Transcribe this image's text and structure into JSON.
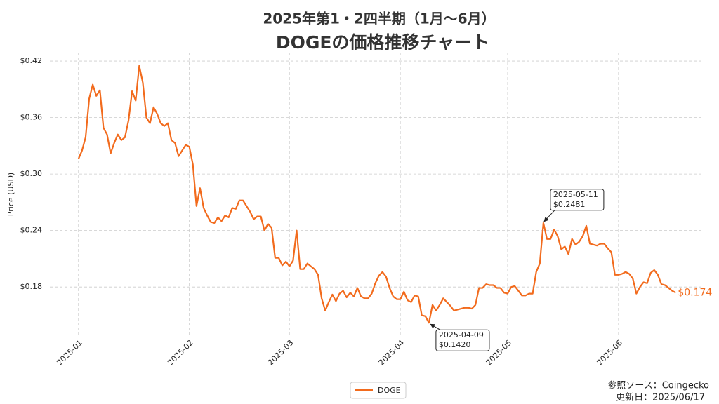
{
  "chart_data": {
    "type": "line",
    "title": "2025年第1・2四半期（1月〜6月）",
    "subtitle": "DOGEの価格推移チャート",
    "y_label": "Price (USD)",
    "source": "参照ソース：Coingecko",
    "updated": "更新日：2025/06/17",
    "grid": true,
    "legend_position": "bottom",
    "x": [
      "2025-01-01",
      "2025-01-02",
      "2025-01-03",
      "2025-01-04",
      "2025-01-05",
      "2025-01-06",
      "2025-01-07",
      "2025-01-08",
      "2025-01-09",
      "2025-01-10",
      "2025-01-11",
      "2025-01-12",
      "2025-01-13",
      "2025-01-14",
      "2025-01-15",
      "2025-01-16",
      "2025-01-17",
      "2025-01-18",
      "2025-01-19",
      "2025-01-20",
      "2025-01-21",
      "2025-01-22",
      "2025-01-23",
      "2025-01-24",
      "2025-01-25",
      "2025-01-26",
      "2025-01-27",
      "2025-01-28",
      "2025-01-29",
      "2025-01-30",
      "2025-01-31",
      "2025-02-01",
      "2025-02-02",
      "2025-02-03",
      "2025-02-04",
      "2025-02-05",
      "2025-02-06",
      "2025-02-07",
      "2025-02-08",
      "2025-02-09",
      "2025-02-10",
      "2025-02-11",
      "2025-02-12",
      "2025-02-13",
      "2025-02-14",
      "2025-02-15",
      "2025-02-16",
      "2025-02-17",
      "2025-02-18",
      "2025-02-19",
      "2025-02-20",
      "2025-02-21",
      "2025-02-22",
      "2025-02-23",
      "2025-02-24",
      "2025-02-25",
      "2025-02-26",
      "2025-02-27",
      "2025-02-28",
      "2025-03-01",
      "2025-03-02",
      "2025-03-03",
      "2025-03-04",
      "2025-03-05",
      "2025-03-06",
      "2025-03-07",
      "2025-03-08",
      "2025-03-09",
      "2025-03-10",
      "2025-03-11",
      "2025-03-12",
      "2025-03-13",
      "2025-03-14",
      "2025-03-15",
      "2025-03-16",
      "2025-03-17",
      "2025-03-18",
      "2025-03-19",
      "2025-03-20",
      "2025-03-21",
      "2025-03-22",
      "2025-03-23",
      "2025-03-24",
      "2025-03-25",
      "2025-03-26",
      "2025-03-27",
      "2025-03-28",
      "2025-03-29",
      "2025-03-30",
      "2025-03-31",
      "2025-04-01",
      "2025-04-02",
      "2025-04-03",
      "2025-04-04",
      "2025-04-05",
      "2025-04-06",
      "2025-04-07",
      "2025-04-08",
      "2025-04-09",
      "2025-04-10",
      "2025-04-11",
      "2025-04-12",
      "2025-04-13",
      "2025-04-14",
      "2025-04-15",
      "2025-04-16",
      "2025-04-17",
      "2025-04-18",
      "2025-04-19",
      "2025-04-20",
      "2025-04-21",
      "2025-04-22",
      "2025-04-23",
      "2025-04-24",
      "2025-04-25",
      "2025-04-26",
      "2025-04-27",
      "2025-04-28",
      "2025-04-29",
      "2025-04-30",
      "2025-05-01",
      "2025-05-02",
      "2025-05-03",
      "2025-05-04",
      "2025-05-05",
      "2025-05-06",
      "2025-05-07",
      "2025-05-08",
      "2025-05-09",
      "2025-05-10",
      "2025-05-11",
      "2025-05-12",
      "2025-05-13",
      "2025-05-14",
      "2025-05-15",
      "2025-05-16",
      "2025-05-17",
      "2025-05-18",
      "2025-05-19",
      "2025-05-20",
      "2025-05-21",
      "2025-05-22",
      "2025-05-23",
      "2025-05-24",
      "2025-05-25",
      "2025-05-26",
      "2025-05-27",
      "2025-05-28",
      "2025-05-29",
      "2025-05-30",
      "2025-05-31",
      "2025-06-01",
      "2025-06-02",
      "2025-06-03",
      "2025-06-04",
      "2025-06-05",
      "2025-06-06",
      "2025-06-07",
      "2025-06-08",
      "2025-06-09",
      "2025-06-10",
      "2025-06-11",
      "2025-06-12",
      "2025-06-13",
      "2025-06-14",
      "2025-06-15",
      "2025-06-16",
      "2025-06-17"
    ],
    "series": [
      {
        "name": "DOGE",
        "color": "#f26b1d",
        "values": [
          0.316,
          0.325,
          0.339,
          0.38,
          0.395,
          0.383,
          0.389,
          0.349,
          0.342,
          0.322,
          0.333,
          0.342,
          0.336,
          0.339,
          0.357,
          0.388,
          0.378,
          0.415,
          0.397,
          0.36,
          0.354,
          0.371,
          0.364,
          0.354,
          0.351,
          0.354,
          0.336,
          0.333,
          0.319,
          0.325,
          0.331,
          0.329,
          0.31,
          0.266,
          0.285,
          0.264,
          0.256,
          0.249,
          0.248,
          0.254,
          0.25,
          0.256,
          0.254,
          0.264,
          0.263,
          0.272,
          0.272,
          0.266,
          0.26,
          0.252,
          0.255,
          0.255,
          0.24,
          0.247,
          0.243,
          0.211,
          0.211,
          0.203,
          0.207,
          0.202,
          0.208,
          0.24,
          0.199,
          0.199,
          0.205,
          0.202,
          0.199,
          0.193,
          0.168,
          0.155,
          0.164,
          0.172,
          0.165,
          0.173,
          0.176,
          0.169,
          0.174,
          0.17,
          0.179,
          0.17,
          0.168,
          0.168,
          0.173,
          0.184,
          0.192,
          0.196,
          0.191,
          0.179,
          0.17,
          0.167,
          0.167,
          0.175,
          0.166,
          0.164,
          0.171,
          0.17,
          0.15,
          0.149,
          0.142,
          0.161,
          0.155,
          0.161,
          0.168,
          0.164,
          0.16,
          0.155,
          0.156,
          0.157,
          0.158,
          0.158,
          0.157,
          0.161,
          0.179,
          0.179,
          0.183,
          0.182,
          0.182,
          0.179,
          0.179,
          0.174,
          0.173,
          0.18,
          0.181,
          0.176,
          0.171,
          0.171,
          0.173,
          0.173,
          0.196,
          0.205,
          0.2481,
          0.231,
          0.231,
          0.241,
          0.234,
          0.22,
          0.223,
          0.215,
          0.231,
          0.225,
          0.228,
          0.234,
          0.245,
          0.226,
          0.225,
          0.224,
          0.226,
          0.226,
          0.221,
          0.217,
          0.193,
          0.193,
          0.194,
          0.196,
          0.194,
          0.189,
          0.173,
          0.18,
          0.185,
          0.184,
          0.195,
          0.198,
          0.193,
          0.183,
          0.182,
          0.179,
          0.176,
          0.174
        ]
      }
    ],
    "xlim": [
      "2024-12-24",
      "2025-06-24"
    ],
    "xticks": [
      {
        "value": "2025-01-01",
        "label": "2025-01"
      },
      {
        "value": "2025-02-01",
        "label": "2025-02"
      },
      {
        "value": "2025-03-01",
        "label": "2025-03"
      },
      {
        "value": "2025-04-01",
        "label": "2025-04"
      },
      {
        "value": "2025-05-01",
        "label": "2025-05"
      },
      {
        "value": "2025-06-01",
        "label": "2025-06"
      }
    ],
    "ylim": [
      0.128,
      0.429
    ],
    "yticks": [
      {
        "value": 0.18,
        "label": "$0.18"
      },
      {
        "value": 0.24,
        "label": "$0.24"
      },
      {
        "value": 0.3,
        "label": "$0.30"
      },
      {
        "value": 0.36,
        "label": "$0.36"
      },
      {
        "value": 0.42,
        "label": "$0.42"
      }
    ],
    "annotations": [
      {
        "x": "2025-04-09",
        "y": 0.142,
        "text": [
          "2025-04-09",
          "$0.1420"
        ]
      },
      {
        "x": "2025-05-11",
        "y": 0.2481,
        "text": [
          "2025-05-11",
          "$0.2481"
        ]
      }
    ],
    "last_label": {
      "value": 0.174,
      "label": "$0.174"
    }
  }
}
